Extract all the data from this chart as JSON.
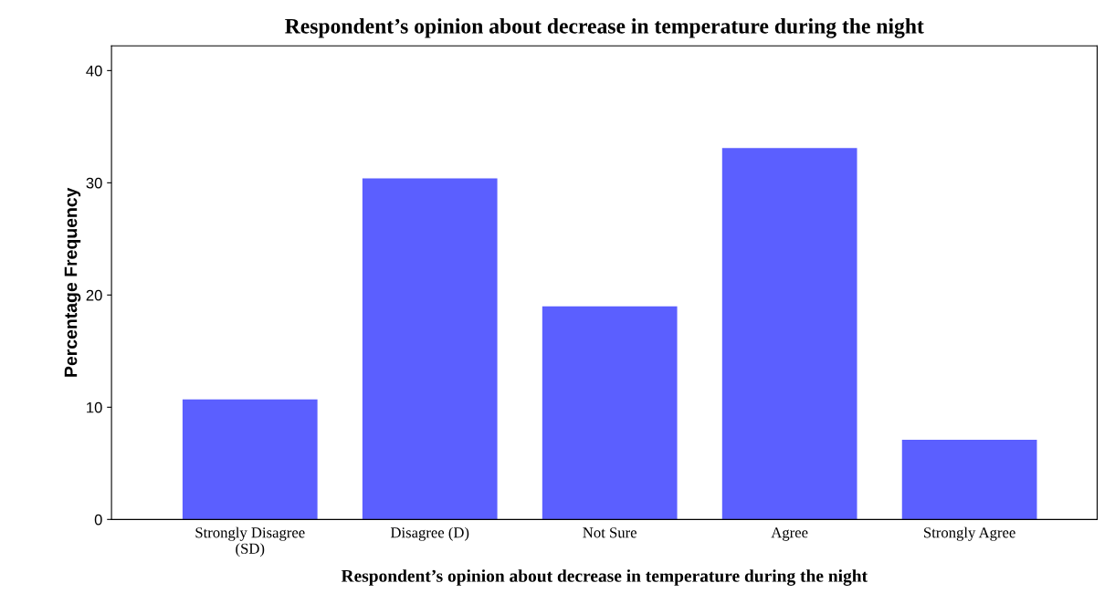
{
  "chart_data": {
    "type": "bar",
    "title": "Respondent’s opinion about decrease in temperature during the night",
    "xlabel": "Respondent’s opinion about decrease in temperature during the night",
    "ylabel": "Percentage Frequency",
    "categories": [
      "Strongly Disagree\n(SD)",
      "Disagree (D)",
      "Not Sure",
      "Agree",
      "Strongly Agree"
    ],
    "values": [
      10.7,
      30.4,
      19.0,
      33.1,
      7.1
    ],
    "color": "#5b5fff",
    "ylim": [
      0,
      42.2
    ],
    "yticks": [
      0,
      10,
      20,
      30,
      40
    ],
    "grid": false,
    "legend": false
  }
}
